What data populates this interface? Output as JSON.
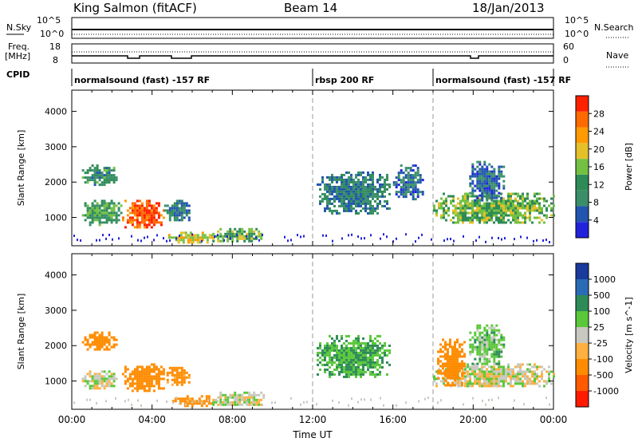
{
  "header": {
    "station": "King Salmon (fitACF)",
    "beam": "Beam 14",
    "date": "18/Jan/2013"
  },
  "top_panels": {
    "nsky_label": "N.Sky",
    "nsky_ticks": [
      "10^5",
      "10^0"
    ],
    "nsearch_label": "N.Search",
    "nsearch_ticks": [
      "10^5",
      "10^0"
    ],
    "freq_label": "Freq.",
    "freq_unit": "[MHz]",
    "freq_ticks": [
      "18",
      "8"
    ],
    "nave_label": "Nave",
    "nave_ticks": [
      "60",
      "0"
    ],
    "cpid_label": "CPID"
  },
  "cpid_segments": [
    {
      "label": "normalsound (fast) -157 RF",
      "start_hour": 0
    },
    {
      "label": "rbsp 200 RF",
      "start_hour": 12
    },
    {
      "label": "normalsound (fast) -157 RF",
      "start_hour": 18
    }
  ],
  "colors": {
    "power_scale": [
      "#2222dd",
      "#2255b0",
      "#3a8f6a",
      "#2e8b57",
      "#74c043",
      "#e5c02a",
      "#ff9a00",
      "#ff6a00",
      "#ff2000"
    ],
    "velocity_scale": [
      "#1a3a9c",
      "#2a6bb5",
      "#2e8b57",
      "#5ac83a",
      "#c8c8c0",
      "#ffb040",
      "#ff8c00",
      "#ff5a00",
      "#ff1a00"
    ],
    "ground_scatter": "#bebebe"
  },
  "chart_data": [
    {
      "type": "heatmap",
      "title": "Power",
      "ylabel": "Slant Range [km]",
      "x_domain_hours": [
        0,
        24
      ],
      "ylim": [
        200,
        4600
      ],
      "yticks": [
        1000,
        2000,
        3000,
        4000
      ],
      "colorbar": {
        "label": "Power [dB]",
        "ticks": [
          4,
          8,
          12,
          16,
          20,
          24,
          28
        ],
        "range": [
          0,
          30
        ]
      },
      "regions": [
        {
          "x": [
            0.5,
            2.5
          ],
          "y": [
            800,
            1500
          ],
          "value": 12
        },
        {
          "x": [
            2.5,
            4.6
          ],
          "y": [
            700,
            1500
          ],
          "value": 26
        },
        {
          "x": [
            4.6,
            5.8
          ],
          "y": [
            900,
            1500
          ],
          "value": 8
        },
        {
          "x": [
            0.5,
            2.2
          ],
          "y": [
            1900,
            2500
          ],
          "value": 10
        },
        {
          "x": [
            4.8,
            7.0
          ],
          "y": [
            300,
            600
          ],
          "value": 18
        },
        {
          "x": [
            7.0,
            9.6
          ],
          "y": [
            300,
            700
          ],
          "value": 14
        },
        {
          "x": [
            12.2,
            15.8
          ],
          "y": [
            1100,
            2300
          ],
          "value": 8
        },
        {
          "x": [
            16.0,
            17.5
          ],
          "y": [
            1500,
            2500
          ],
          "value": 6
        },
        {
          "x": [
            18.0,
            24.0
          ],
          "y": [
            850,
            1700
          ],
          "value": 14
        },
        {
          "x": [
            19.8,
            21.5
          ],
          "y": [
            1500,
            2600
          ],
          "value": 6
        }
      ]
    },
    {
      "type": "heatmap",
      "title": "Velocity",
      "xlabel": "Time UT",
      "ylabel": "Slant Range [km]",
      "x_domain_hours": [
        0,
        24
      ],
      "xticks": [
        "00:00",
        "04:00",
        "08:00",
        "12:00",
        "16:00",
        "20:00",
        "00:00"
      ],
      "ylim": [
        200,
        4600
      ],
      "yticks": [
        1000,
        2000,
        3000,
        4000
      ],
      "colorbar": {
        "label": "Velocity [m s^-1]",
        "ticks": [
          1000,
          500,
          100,
          25,
          -25,
          -100,
          -500,
          -1000
        ]
      },
      "regions": [
        {
          "x": [
            0.5,
            2.2
          ],
          "y": [
            800,
            1300
          ],
          "value": 0
        },
        {
          "x": [
            2.5,
            4.6
          ],
          "y": [
            700,
            1500
          ],
          "value": -300
        },
        {
          "x": [
            4.6,
            5.8
          ],
          "y": [
            900,
            1400
          ],
          "value": -150
        },
        {
          "x": [
            0.5,
            2.2
          ],
          "y": [
            1900,
            2400
          ],
          "value": -200
        },
        {
          "x": [
            5.0,
            7.0
          ],
          "y": [
            300,
            600
          ],
          "value": -150
        },
        {
          "x": [
            7.0,
            9.6
          ],
          "y": [
            300,
            700
          ],
          "value": 0
        },
        {
          "x": [
            12.2,
            15.8
          ],
          "y": [
            1100,
            2300
          ],
          "value": 100
        },
        {
          "x": [
            18.0,
            24.0
          ],
          "y": [
            850,
            1500
          ],
          "value": 0
        },
        {
          "x": [
            18.2,
            19.6
          ],
          "y": [
            900,
            2200
          ],
          "value": -200
        },
        {
          "x": [
            19.8,
            21.5
          ],
          "y": [
            1500,
            2600
          ],
          "value": 60
        }
      ]
    }
  ]
}
